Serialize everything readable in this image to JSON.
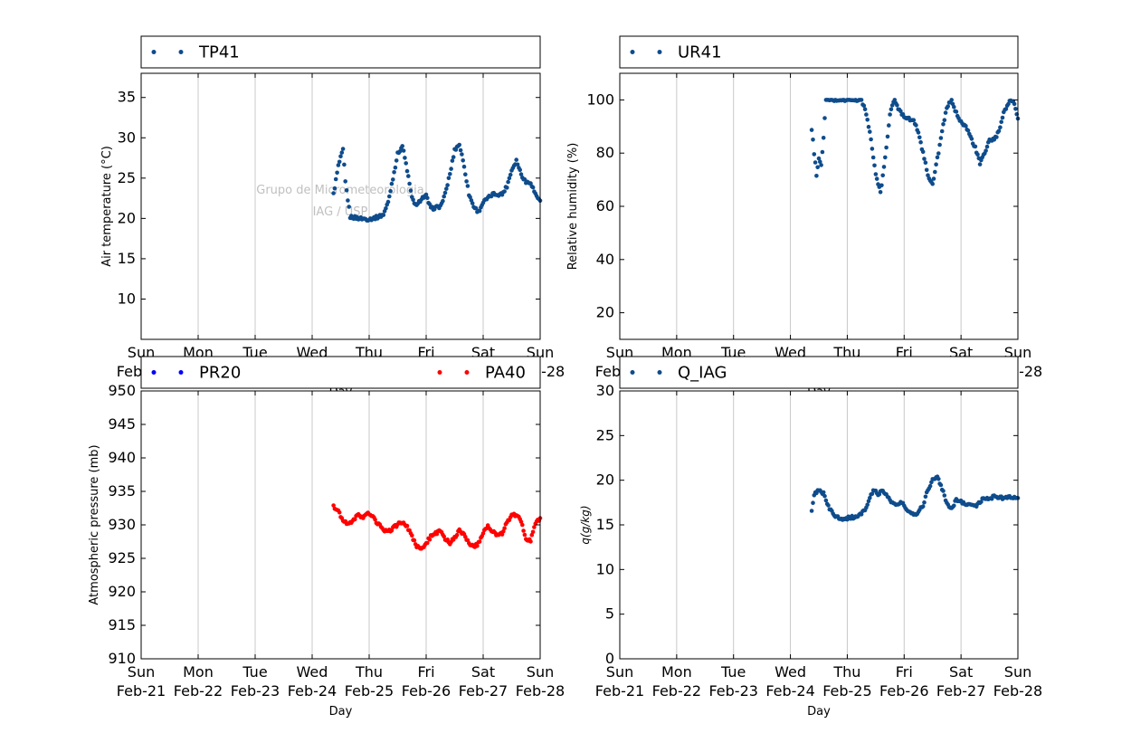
{
  "watermark": {
    "line1": "Grupo de Micrometeorologia",
    "line2": "IAG / USP"
  },
  "colors": {
    "blue": "#0e4c8c",
    "pure_blue": "#0000ff",
    "red": "#ff0000",
    "grid": "#c8c8c8"
  },
  "x_tick_labels": [
    [
      "Sun",
      "Feb-21"
    ],
    [
      "Mon",
      "Feb-22"
    ],
    [
      "Tue",
      "Feb-23"
    ],
    [
      "Wed",
      "Feb-24"
    ],
    [
      "Thu",
      "Feb-25"
    ],
    [
      "Fri",
      "Feb-26"
    ],
    [
      "Sat",
      "Feb-27"
    ],
    [
      "Sun",
      "Feb-28"
    ]
  ],
  "chart_data": [
    {
      "type": "scatter",
      "ylabel": "Air temperature (°C)",
      "xlabel": "Day",
      "xlim": [
        "2016-02-21",
        "2016-02-28"
      ],
      "ylim": [
        5,
        38
      ],
      "yticks": [
        10,
        15,
        20,
        25,
        30,
        35
      ],
      "grid": "vertical",
      "legend": "top",
      "series": [
        {
          "name": "TP41",
          "color": "#0e4c8c",
          "points": [
            [
              "2016-02-24 09:00",
              23.0
            ],
            [
              "2016-02-24 11:00",
              26.5
            ],
            [
              "2016-02-24 13:00",
              28.5
            ],
            [
              "2016-02-24 14:00",
              24.5
            ],
            [
              "2016-02-24 16:00",
              20.2
            ],
            [
              "2016-02-24 20:00",
              20.0
            ],
            [
              "2016-02-25 00:00",
              19.9
            ],
            [
              "2016-02-25 04:00",
              20.2
            ],
            [
              "2016-02-25 06:00",
              20.5
            ],
            [
              "2016-02-25 08:00",
              22.0
            ],
            [
              "2016-02-25 10:00",
              25.0
            ],
            [
              "2016-02-25 12:00",
              28.0
            ],
            [
              "2016-02-25 14:00",
              29.0
            ],
            [
              "2016-02-25 16:00",
              26.0
            ],
            [
              "2016-02-25 18:00",
              22.5
            ],
            [
              "2016-02-25 20:00",
              21.5
            ],
            [
              "2016-02-25 22:00",
              22.5
            ],
            [
              "2016-02-26 00:00",
              22.8
            ],
            [
              "2016-02-26 02:00",
              21.2
            ],
            [
              "2016-02-26 06:00",
              21.5
            ],
            [
              "2016-02-26 08:00",
              23.0
            ],
            [
              "2016-02-26 10:00",
              25.5
            ],
            [
              "2016-02-26 12:00",
              28.5
            ],
            [
              "2016-02-26 14:00",
              29.2
            ],
            [
              "2016-02-26 16:00",
              26.5
            ],
            [
              "2016-02-26 18:00",
              23.0
            ],
            [
              "2016-02-26 20:00",
              21.5
            ],
            [
              "2016-02-26 22:00",
              20.8
            ],
            [
              "2016-02-27 00:00",
              22.0
            ],
            [
              "2016-02-27 04:00",
              23.0
            ],
            [
              "2016-02-27 08:00",
              23.0
            ],
            [
              "2016-02-27 10:00",
              24.0
            ],
            [
              "2016-02-27 12:00",
              26.0
            ],
            [
              "2016-02-27 14:00",
              27.2
            ],
            [
              "2016-02-27 16:00",
              25.5
            ],
            [
              "2016-02-27 18:00",
              24.5
            ],
            [
              "2016-02-27 20:00",
              24.5
            ],
            [
              "2016-02-27 22:00",
              23.0
            ],
            [
              "2016-02-28 00:00",
              22.2
            ]
          ]
        }
      ]
    },
    {
      "type": "scatter",
      "ylabel": "Relative humidity (%)",
      "xlabel": "Day",
      "xlim": [
        "2016-02-21",
        "2016-02-28"
      ],
      "ylim": [
        10,
        110
      ],
      "yticks": [
        20,
        40,
        60,
        80,
        100
      ],
      "grid": "vertical",
      "legend": "top",
      "series": [
        {
          "name": "UR41",
          "color": "#0e4c8c",
          "points": [
            [
              "2016-02-24 09:00",
              89.0
            ],
            [
              "2016-02-24 10:00",
              80.0
            ],
            [
              "2016-02-24 11:00",
              72.0
            ],
            [
              "2016-02-24 12:00",
              78.0
            ],
            [
              "2016-02-24 13:00",
              75.0
            ],
            [
              "2016-02-24 14:00",
              86.0
            ],
            [
              "2016-02-24 15:00",
              100.0
            ],
            [
              "2016-02-24 20:00",
              100.0
            ],
            [
              "2016-02-25 00:00",
              100.0
            ],
            [
              "2016-02-25 06:00",
              100.0
            ],
            [
              "2016-02-25 08:00",
              95.0
            ],
            [
              "2016-02-25 10:00",
              85.0
            ],
            [
              "2016-02-25 12:00",
              72.0
            ],
            [
              "2016-02-25 14:00",
              65.0
            ],
            [
              "2016-02-25 16:00",
              78.0
            ],
            [
              "2016-02-25 18:00",
              95.0
            ],
            [
              "2016-02-25 20:00",
              100.0
            ],
            [
              "2016-02-25 22:00",
              96.0
            ],
            [
              "2016-02-26 00:00",
              94.0
            ],
            [
              "2016-02-26 04:00",
              92.0
            ],
            [
              "2016-02-26 06:00",
              88.0
            ],
            [
              "2016-02-26 08:00",
              80.0
            ],
            [
              "2016-02-26 10:00",
              72.0
            ],
            [
              "2016-02-26 12:00",
              68.0
            ],
            [
              "2016-02-26 14:00",
              78.0
            ],
            [
              "2016-02-26 16:00",
              88.0
            ],
            [
              "2016-02-26 18:00",
              97.0
            ],
            [
              "2016-02-26 20:00",
              100.0
            ],
            [
              "2016-02-26 22:00",
              95.0
            ],
            [
              "2016-02-27 00:00",
              92.0
            ],
            [
              "2016-02-27 02:00",
              90.0
            ],
            [
              "2016-02-27 04:00",
              86.0
            ],
            [
              "2016-02-27 06:00",
              82.0
            ],
            [
              "2016-02-27 08:00",
              76.0
            ],
            [
              "2016-02-27 10:00",
              80.0
            ],
            [
              "2016-02-27 12:00",
              85.0
            ],
            [
              "2016-02-27 14:00",
              85.0
            ],
            [
              "2016-02-27 16:00",
              88.0
            ],
            [
              "2016-02-27 18:00",
              95.0
            ],
            [
              "2016-02-27 20:00",
              99.0
            ],
            [
              "2016-02-27 22:00",
              100.0
            ],
            [
              "2016-02-28 00:00",
              93.0
            ]
          ]
        }
      ]
    },
    {
      "type": "scatter",
      "ylabel": "Atmospheric pressure (mb)",
      "xlabel": "Day",
      "xlim": [
        "2016-02-21",
        "2016-02-28"
      ],
      "ylim": [
        910,
        950
      ],
      "yticks": [
        910,
        915,
        920,
        925,
        930,
        935,
        940,
        945,
        950
      ],
      "grid": "vertical",
      "legend": "top",
      "series": [
        {
          "name": "PR20",
          "color": "#0000ff",
          "points": []
        },
        {
          "name": "PA40",
          "color": "#ff0000",
          "points": [
            [
              "2016-02-24 09:00",
              932.7
            ],
            [
              "2016-02-24 11:00",
              932.0
            ],
            [
              "2016-02-24 13:00",
              930.8
            ],
            [
              "2016-02-24 15:00",
              930.0
            ],
            [
              "2016-02-24 17:00",
              930.5
            ],
            [
              "2016-02-24 19:00",
              931.5
            ],
            [
              "2016-02-24 21:00",
              931.0
            ],
            [
              "2016-02-24 23:00",
              931.8
            ],
            [
              "2016-02-25 01:00",
              931.5
            ],
            [
              "2016-02-25 03:00",
              930.5
            ],
            [
              "2016-02-25 06:00",
              929.3
            ],
            [
              "2016-02-25 08:00",
              929.0
            ],
            [
              "2016-02-25 10:00",
              929.5
            ],
            [
              "2016-02-25 12:00",
              930.0
            ],
            [
              "2016-02-25 14:00",
              930.5
            ],
            [
              "2016-02-25 16:00",
              929.8
            ],
            [
              "2016-02-25 18:00",
              928.2
            ],
            [
              "2016-02-25 20:00",
              926.8
            ],
            [
              "2016-02-25 22:00",
              926.3
            ],
            [
              "2016-02-26 00:00",
              927.2
            ],
            [
              "2016-02-26 02:00",
              928.3
            ],
            [
              "2016-02-26 04:00",
              928.8
            ],
            [
              "2016-02-26 06:00",
              929.0
            ],
            [
              "2016-02-26 08:00",
              928.0
            ],
            [
              "2016-02-26 10:00",
              927.3
            ],
            [
              "2016-02-26 12:00",
              928.0
            ],
            [
              "2016-02-26 14:00",
              929.2
            ],
            [
              "2016-02-26 16:00",
              928.6
            ],
            [
              "2016-02-26 18:00",
              927.3
            ],
            [
              "2016-02-26 20:00",
              926.7
            ],
            [
              "2016-02-26 22:00",
              927.2
            ],
            [
              "2016-02-27 00:00",
              928.8
            ],
            [
              "2016-02-27 02:00",
              929.7
            ],
            [
              "2016-02-27 04:00",
              929.0
            ],
            [
              "2016-02-27 06:00",
              928.5
            ],
            [
              "2016-02-27 08:00",
              928.8
            ],
            [
              "2016-02-27 10:00",
              930.3
            ],
            [
              "2016-02-27 12:00",
              931.3
            ],
            [
              "2016-02-27 14:00",
              931.6
            ],
            [
              "2016-02-27 16:00",
              930.5
            ],
            [
              "2016-02-27 18:00",
              928.0
            ],
            [
              "2016-02-27 20:00",
              927.7
            ],
            [
              "2016-02-27 22:00",
              930.2
            ],
            [
              "2016-02-28 00:00",
              931.0
            ]
          ]
        }
      ]
    },
    {
      "type": "scatter",
      "ylabel": "q(g/kg)",
      "xlabel": "Day",
      "xlim": [
        "2016-02-21",
        "2016-02-28"
      ],
      "ylim": [
        0,
        30
      ],
      "yticks": [
        0,
        5,
        10,
        15,
        20,
        25,
        30
      ],
      "grid": "vertical",
      "legend": "top",
      "series": [
        {
          "name": "Q_IAG",
          "color": "#0e4c8c",
          "points": [
            [
              "2016-02-24 09:00",
              16.4
            ],
            [
              "2016-02-24 10:00",
              18.3
            ],
            [
              "2016-02-24 12:00",
              19.0
            ],
            [
              "2016-02-24 14:00",
              18.5
            ],
            [
              "2016-02-24 16:00",
              17.0
            ],
            [
              "2016-02-24 19:00",
              15.9
            ],
            [
              "2016-02-24 22:00",
              15.7
            ],
            [
              "2016-02-25 01:00",
              15.8
            ],
            [
              "2016-02-25 04:00",
              15.9
            ],
            [
              "2016-02-25 07:00",
              16.5
            ],
            [
              "2016-02-25 09:00",
              17.5
            ],
            [
              "2016-02-25 11:00",
              19.0
            ],
            [
              "2016-02-25 13:00",
              18.5
            ],
            [
              "2016-02-25 15:00",
              18.8
            ],
            [
              "2016-02-25 17:00",
              18.2
            ],
            [
              "2016-02-25 19:00",
              17.5
            ],
            [
              "2016-02-25 21:00",
              17.2
            ],
            [
              "2016-02-25 23:00",
              17.5
            ],
            [
              "2016-02-26 02:00",
              16.4
            ],
            [
              "2016-02-26 05:00",
              16.2
            ],
            [
              "2016-02-26 08:00",
              17.2
            ],
            [
              "2016-02-26 10:00",
              19.0
            ],
            [
              "2016-02-26 12:00",
              20.0
            ],
            [
              "2016-02-26 14:00",
              20.5
            ],
            [
              "2016-02-26 16:00",
              19.0
            ],
            [
              "2016-02-26 18:00",
              17.5
            ],
            [
              "2016-02-26 20:00",
              16.8
            ],
            [
              "2016-02-26 22:00",
              17.8
            ],
            [
              "2016-02-27 02:00",
              17.4
            ],
            [
              "2016-02-27 06:00",
              17.1
            ],
            [
              "2016-02-27 09:00",
              17.8
            ],
            [
              "2016-02-27 12:00",
              18.0
            ],
            [
              "2016-02-27 15:00",
              18.2
            ],
            [
              "2016-02-27 18:00",
              17.9
            ],
            [
              "2016-02-27 21:00",
              18.2
            ],
            [
              "2016-02-28 00:00",
              18.0
            ]
          ]
        }
      ]
    }
  ]
}
